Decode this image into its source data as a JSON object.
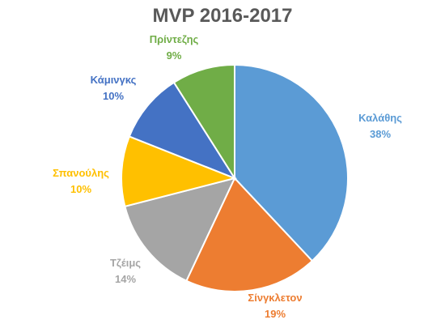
{
  "chart_data": {
    "type": "pie",
    "title": "MVP 2016-2017",
    "slices": [
      {
        "name": "Καλάθης",
        "value": 38,
        "label": "38%",
        "color": "#5B9BD5"
      },
      {
        "name": "Σίνγκλετον",
        "value": 19,
        "label": "19%",
        "color": "#ED7D31"
      },
      {
        "name": "Τζέιμς",
        "value": 14,
        "label": "14%",
        "color": "#A5A5A5"
      },
      {
        "name": "Σπανούλης",
        "value": 10,
        "label": "10%",
        "color": "#FFC000"
      },
      {
        "name": "Κάμινγκς",
        "value": 10,
        "label": "10%",
        "color": "#4472C4"
      },
      {
        "name": "Πρίντεζης",
        "value": 9,
        "label": "9%",
        "color": "#70AD47"
      }
    ],
    "legend": "none",
    "data_labels": "outside"
  }
}
